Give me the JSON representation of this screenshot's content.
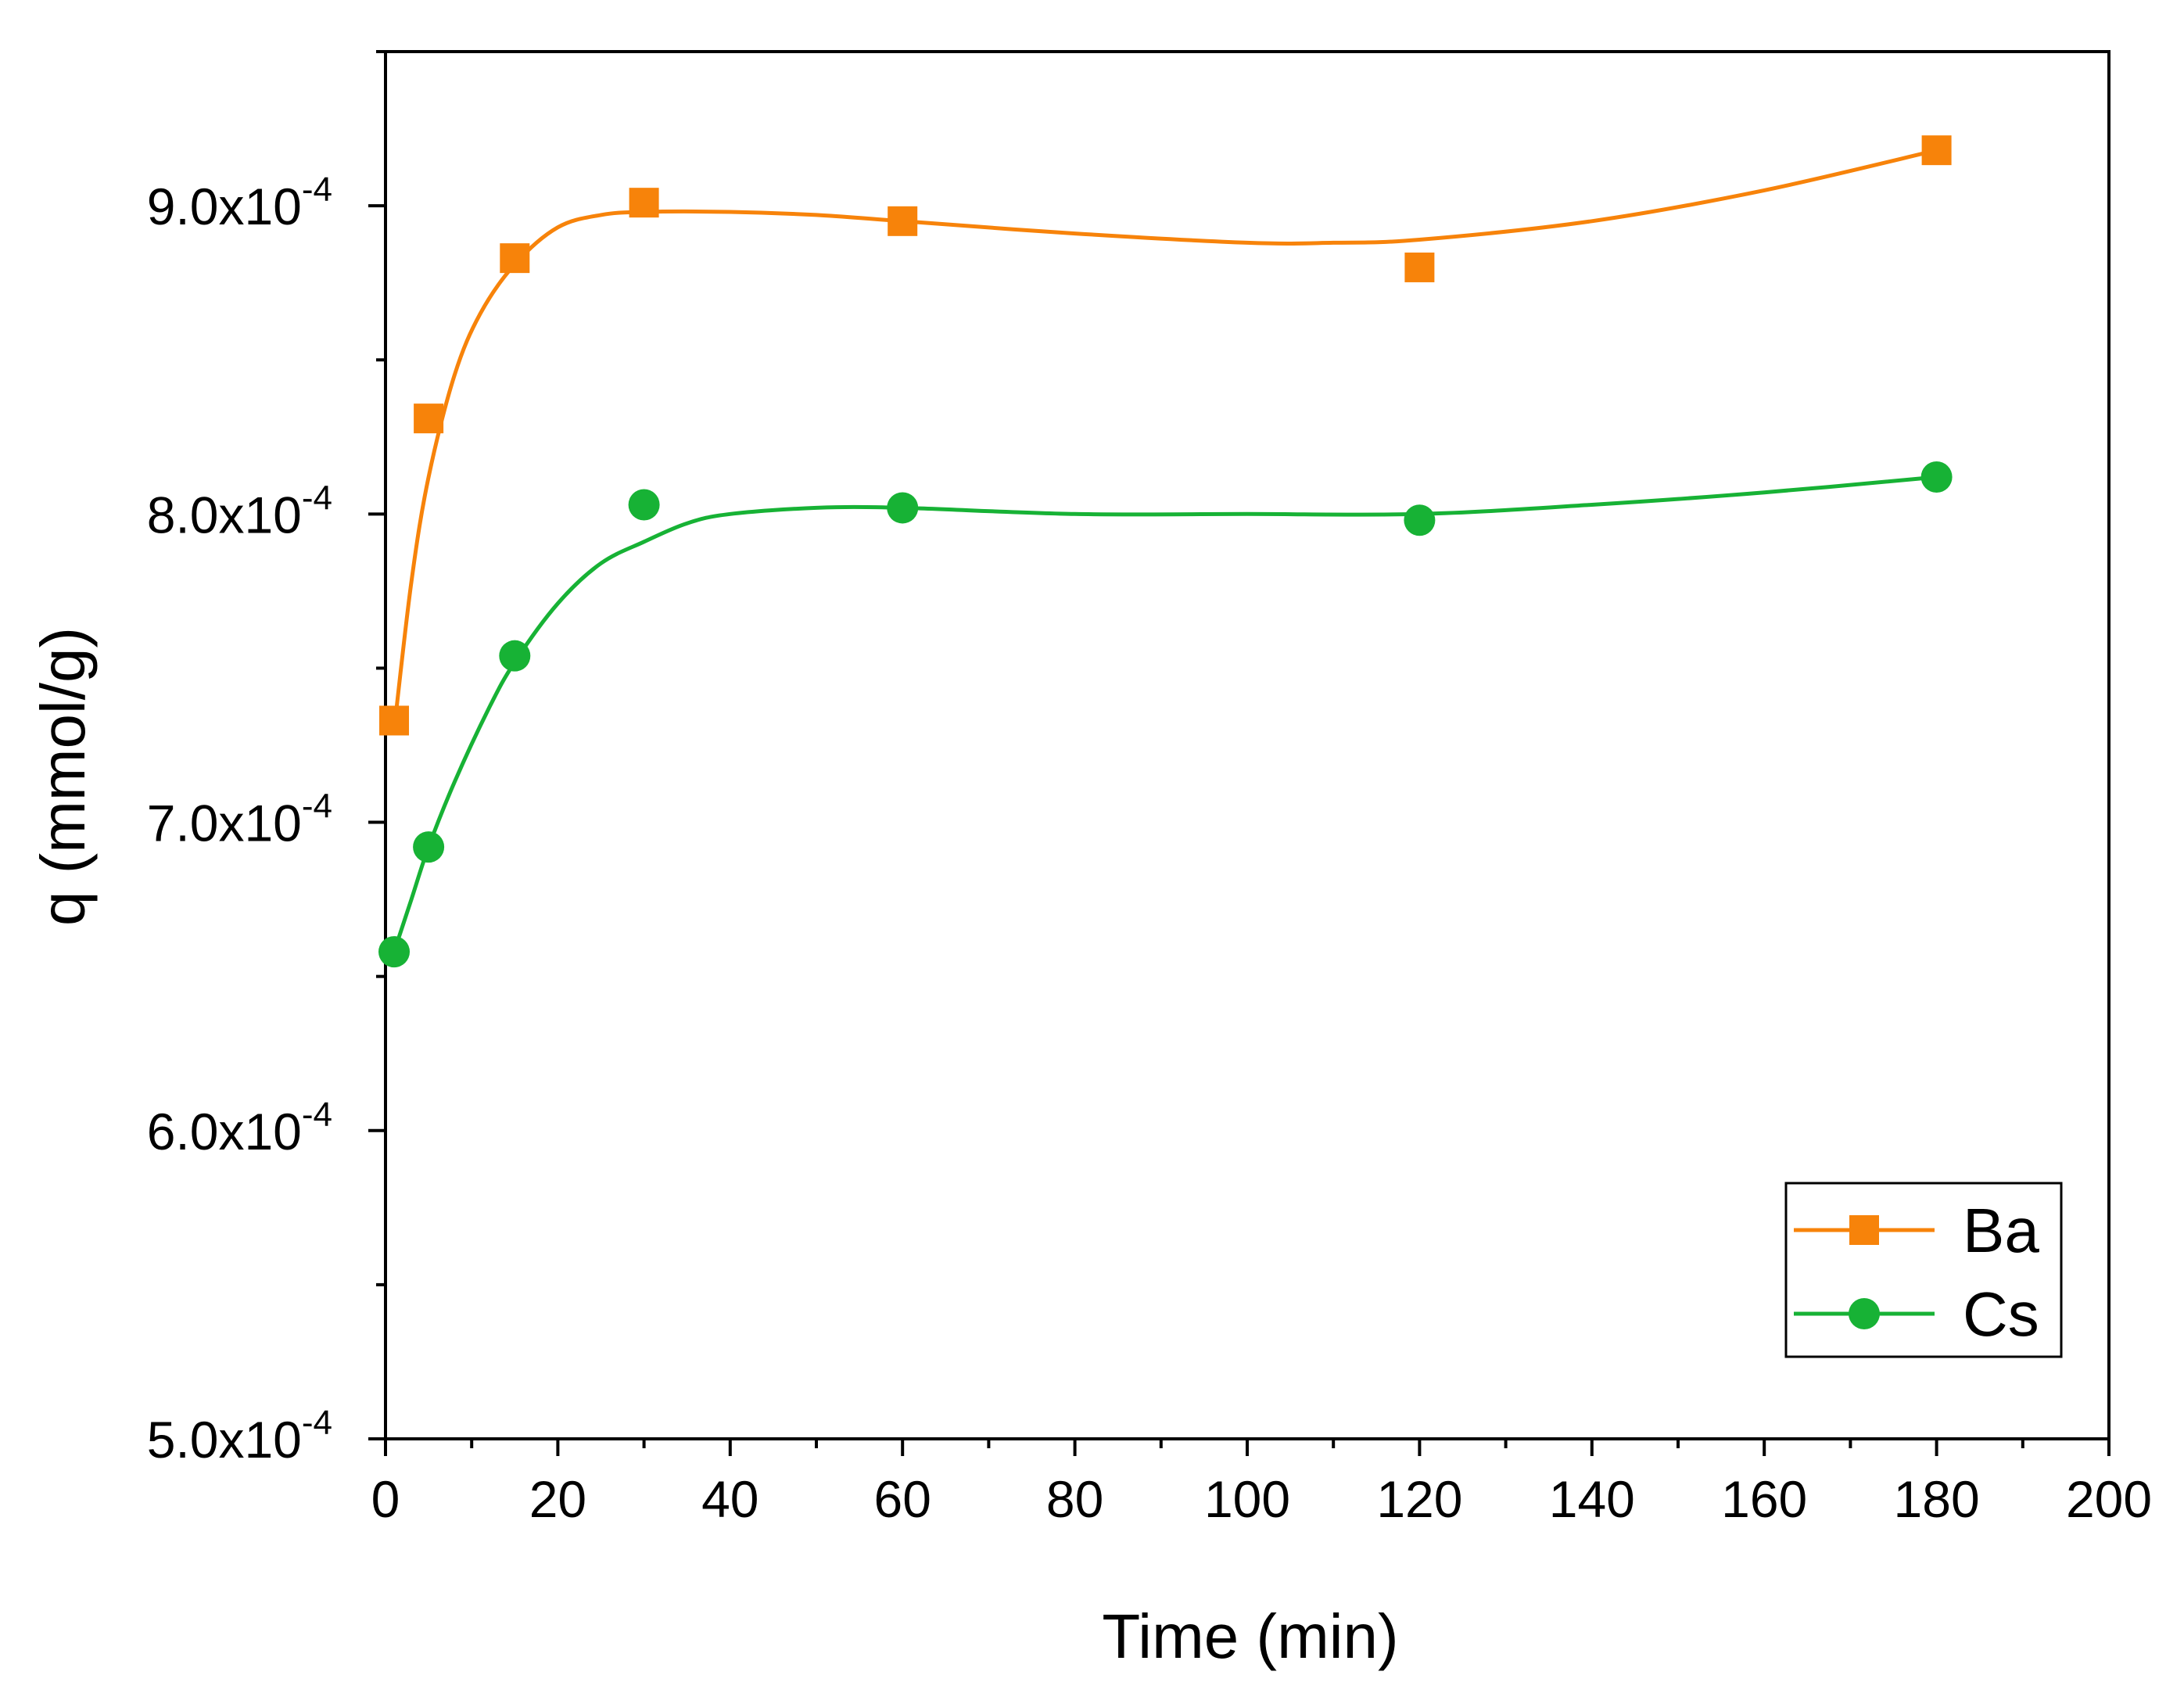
{
  "chart_data": {
    "type": "scatter",
    "title": "",
    "xlabel": "Time (min)",
    "ylabel": "q (mmol/g)",
    "xlim": [
      0,
      200
    ],
    "ylim": [
      0.0005,
      0.00095
    ],
    "x_ticks": [
      0,
      20,
      40,
      60,
      80,
      100,
      120,
      140,
      160,
      180,
      200
    ],
    "y_ticks": [
      {
        "value": 0.0005,
        "mantissa": "5.0x10",
        "exponent": "-4"
      },
      {
        "value": 0.0006,
        "mantissa": "6.0x10",
        "exponent": "-4"
      },
      {
        "value": 0.0007,
        "mantissa": "7.0x10",
        "exponent": "-4"
      },
      {
        "value": 0.0008,
        "mantissa": "8.0x10",
        "exponent": "-4"
      },
      {
        "value": 0.0009,
        "mantissa": "9.0x10",
        "exponent": "-4"
      }
    ],
    "grid": false,
    "legend_position": "bottom-right",
    "series": [
      {
        "name": "Ba",
        "marker": "square",
        "color": "#F7830A",
        "x": [
          1,
          5,
          15,
          30,
          60,
          120,
          180
        ],
        "y": [
          0.000733,
          0.000831,
          0.000883,
          0.000901,
          0.000895,
          0.00088,
          0.000918
        ],
        "fit": {
          "x": [
            1,
            3,
            5,
            8,
            11,
            15,
            20,
            25,
            30,
            40,
            50,
            60,
            80,
            100,
            110,
            120,
            140,
            160,
            180
          ],
          "y": [
            0.00073,
            0.000778,
            0.000812,
            0.000845,
            0.000865,
            0.000881,
            0.000893,
            0.000897,
            0.000898,
            0.000898,
            0.000897,
            0.000895,
            0.000891,
            0.000888,
            0.000888,
            0.000889,
            0.000895,
            0.000905,
            0.000918
          ]
        }
      },
      {
        "name": "Cs",
        "marker": "circle",
        "color": "#17B235",
        "x": [
          1,
          5,
          15,
          30,
          60,
          120,
          180
        ],
        "y": [
          0.000658,
          0.000692,
          0.000754,
          0.000803,
          0.000802,
          0.000798,
          0.000812
        ],
        "fit": {
          "x": [
            1,
            3,
            5,
            8,
            12,
            15,
            20,
            25,
            30,
            35,
            40,
            50,
            60,
            80,
            100,
            120,
            140,
            160,
            180
          ],
          "y": [
            0.000658,
            0.000675,
            0.000692,
            0.000713,
            0.000737,
            0.000752,
            0.000771,
            0.000784,
            0.000791,
            0.000797,
            0.0008,
            0.000802,
            0.000802,
            0.0008,
            0.0008,
            0.0008,
            0.000803,
            0.000807,
            0.000812
          ]
        }
      }
    ]
  }
}
